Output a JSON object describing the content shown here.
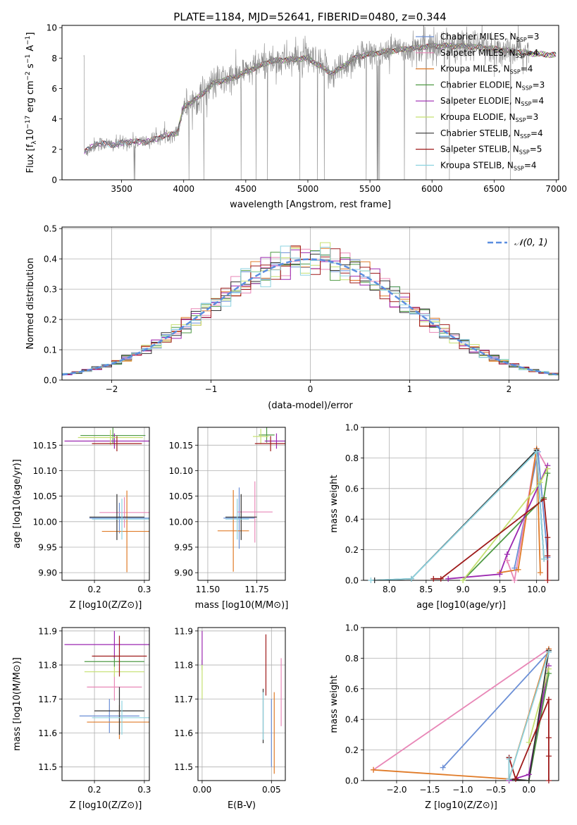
{
  "figure": {
    "title": "PLATE=1184, MJD=52641, FIBERID=0480, z=0.344"
  },
  "colors": {
    "Chabrier MILES": "#6b8fd6",
    "Salpeter MILES": "#e887b7",
    "Kroupa MILES": "#e07b28",
    "Chabrier ELODIE": "#4f9a44",
    "Salpeter ELODIE": "#9b27b0",
    "Kroupa ELODIE": "#c5e070",
    "Chabrier STELIB": "#333333",
    "Salpeter STELIB": "#9e1a1a",
    "Kroupa STELIB": "#8dd3e0",
    "data": "#888888",
    "gaussian": "#5b8ee0"
  },
  "chart_data": [
    {
      "type": "line",
      "id": "spectrum",
      "xlabel": "wavelength [Angstrom, rest frame]",
      "ylabel": "Flux [f_λ 10^-17 erg cm^-2 s^-1 A^-1]",
      "ylabel_parts": {
        "main": "Flux [f",
        "sub1": "λ",
        "mid": "10",
        "sup1": "−17",
        "mid2": " erg cm",
        "sup2": "−2",
        "mid3": " s",
        "sup3": "−1",
        "mid4": " A",
        "sup4": "−1",
        "end": "]"
      },
      "xlim": [
        3020,
        7020
      ],
      "ylim": [
        0,
        10.15
      ],
      "xticks": [
        3500,
        4000,
        4500,
        5000,
        5500,
        6000,
        6500,
        7000
      ],
      "yticks": [
        0,
        2,
        4,
        6,
        8,
        10
      ],
      "legend": [
        {
          "name": "Chabrier MILES",
          "n": "3"
        },
        {
          "name": "Salpeter MILES",
          "n": "4"
        },
        {
          "name": "Kroupa MILES",
          "n": "4"
        },
        {
          "name": "Chabrier ELODIE",
          "n": "3"
        },
        {
          "name": "Salpeter ELODIE",
          "n": "4"
        },
        {
          "name": "Kroupa ELODIE",
          "n": "3"
        },
        {
          "name": "Chabrier STELIB",
          "n": "4"
        },
        {
          "name": "Salpeter STELIB",
          "n": "5"
        },
        {
          "name": "Kroupa STELIB",
          "n": "4"
        }
      ],
      "legend_sub": "SSP",
      "legend_position": "upper right",
      "continuum_x": [
        3200,
        3300,
        3450,
        3550,
        3700,
        3850,
        3950,
        4000,
        4100,
        4250,
        4400,
        4500,
        4700,
        4860,
        5000,
        5150,
        5200,
        5400,
        5600,
        5800,
        6000,
        6200,
        6400,
        6600,
        6800,
        7000
      ],
      "continuum_y": [
        1.8,
        2.4,
        2.3,
        2.5,
        2.5,
        2.9,
        3.1,
        4.8,
        5.3,
        6.4,
        6.7,
        7.1,
        7.8,
        7.9,
        8.0,
        7.2,
        7.0,
        8.1,
        8.4,
        8.6,
        8.8,
        8.8,
        8.7,
        8.5,
        8.3,
        8.2
      ],
      "data_range": [
        3195,
        6780
      ]
    },
    {
      "type": "histogram",
      "id": "residuals",
      "xlabel": "(data-model)/error",
      "ylabel": "Normed distribution",
      "xlim": [
        -2.5,
        2.5
      ],
      "ylim": [
        0,
        0.505
      ],
      "xticks": [
        -2,
        -1,
        0,
        1,
        2
      ],
      "yticks": [
        0.0,
        0.1,
        0.2,
        0.3,
        0.4,
        0.5
      ],
      "grid": true,
      "bin_width": 0.1,
      "legend_label": "N(0,1)",
      "legend_position": "upper right",
      "series": [
        "Chabrier MILES",
        "Salpeter MILES",
        "Kroupa MILES",
        "Chabrier ELODIE",
        "Salpeter ELODIE",
        "Kroupa ELODIE",
        "Chabrier STELIB",
        "Salpeter STELIB",
        "Kroupa STELIB"
      ]
    },
    {
      "type": "errorbar",
      "id": "age-vs-Z",
      "xlabel": "Z [log10(Z/Z⊙)]",
      "ylabel": "age [log10(age/yr)]",
      "xlim": [
        0.135,
        0.31
      ],
      "ylim": [
        9.885,
        10.185
      ],
      "xticks": [
        0.2,
        0.3
      ],
      "yticks": [
        9.9,
        9.95,
        10.0,
        10.05,
        10.1,
        10.15
      ],
      "points": [
        {
          "series": "Chabrier MILES",
          "x": 0.25,
          "xerr": 0.06,
          "y": 10.007,
          "yerr": 0.03
        },
        {
          "series": "Salpeter MILES",
          "x": 0.26,
          "xerr": 0.05,
          "y": 10.018,
          "yerr": 0.03
        },
        {
          "series": "Kroupa MILES",
          "x": 0.265,
          "xerr": 0.05,
          "y": 9.981,
          "yerr": 0.08
        },
        {
          "series": "Chabrier ELODIE",
          "x": 0.237,
          "xerr": 0.065,
          "y": 10.169,
          "yerr": 0.015
        },
        {
          "series": "Salpeter ELODIE",
          "x": 0.24,
          "xerr": 0.1,
          "y": 10.158,
          "yerr": 0.015
        },
        {
          "series": "Kroupa ELODIE",
          "x": 0.232,
          "xerr": 0.065,
          "y": 10.165,
          "yerr": 0.015
        },
        {
          "series": "Chabrier STELIB",
          "x": 0.245,
          "xerr": 0.055,
          "y": 10.009,
          "yerr": 0.045
        },
        {
          "series": "Salpeter STELIB",
          "x": 0.245,
          "xerr": 0.05,
          "y": 10.153,
          "yerr": 0.015
        },
        {
          "series": "Kroupa STELIB",
          "x": 0.255,
          "xerr": 0.06,
          "y": 10.005,
          "yerr": 0.04
        }
      ]
    },
    {
      "type": "errorbar",
      "id": "age-vs-mass",
      "xlabel": "mass [log10(M/M⊙)]",
      "xlim": [
        11.45,
        11.895
      ],
      "ylim": [
        9.885,
        10.185
      ],
      "xticks": [
        11.5,
        11.75
      ],
      "yticks": [
        9.9,
        9.95,
        10.0,
        10.05,
        10.1,
        10.15
      ],
      "points": [
        {
          "series": "Chabrier MILES",
          "x": 11.66,
          "xerr": 0.08,
          "y": 10.007,
          "yerr": 0.06
        },
        {
          "series": "Salpeter MILES",
          "x": 11.74,
          "xerr": 0.09,
          "y": 10.019,
          "yerr": 0.06
        },
        {
          "series": "Kroupa MILES",
          "x": 11.63,
          "xerr": 0.08,
          "y": 9.982,
          "yerr": 0.08
        },
        {
          "series": "Chabrier ELODIE",
          "x": 11.8,
          "xerr": 0.04,
          "y": 10.17,
          "yerr": 0.015
        },
        {
          "series": "Salpeter ELODIE",
          "x": 11.85,
          "xerr": 0.06,
          "y": 10.158,
          "yerr": 0.015
        },
        {
          "series": "Kroupa ELODIE",
          "x": 11.77,
          "xerr": 0.04,
          "y": 10.167,
          "yerr": 0.015
        },
        {
          "series": "Chabrier STELIB",
          "x": 11.67,
          "xerr": 0.08,
          "y": 10.009,
          "yerr": 0.045
        },
        {
          "series": "Salpeter STELIB",
          "x": 11.82,
          "xerr": 0.08,
          "y": 10.153,
          "yerr": 0.015
        },
        {
          "series": "Kroupa STELIB",
          "x": 11.65,
          "xerr": 0.06,
          "y": 10.005,
          "yerr": 0.04
        }
      ]
    },
    {
      "type": "line",
      "id": "mass-weight-vs-age",
      "xlabel": "age [log10(age/yr)]",
      "ylabel": "mass weight",
      "xlim": [
        7.65,
        10.3
      ],
      "ylim": [
        0,
        1.0
      ],
      "xticks": [
        8.0,
        8.5,
        9.0,
        9.5,
        10.0
      ],
      "yticks": [
        0.0,
        0.2,
        0.4,
        0.6,
        0.8,
        1.0
      ],
      "grid": true,
      "series": [
        {
          "name": "Chabrier MILES",
          "x": [
            9.7,
            10.02,
            10.15
          ],
          "y": [
            0.08,
            0.84,
            0.15
          ]
        },
        {
          "name": "Salpeter MILES",
          "x": [
            9.6,
            9.7,
            10.0,
            10.15
          ],
          "y": [
            0.13,
            0.0,
            0.86,
            0.73
          ]
        },
        {
          "name": "Kroupa MILES",
          "x": [
            9.5,
            9.75,
            10.0,
            10.05
          ],
          "y": [
            0.05,
            0.07,
            0.86,
            0.05
          ]
        },
        {
          "name": "Chabrier ELODIE",
          "x": [
            9.0,
            10.1,
            10.15
          ],
          "y": [
            0.0,
            0.54,
            0.7
          ]
        },
        {
          "name": "Salpeter ELODIE",
          "x": [
            8.8,
            9.5,
            9.6,
            10.15
          ],
          "y": [
            0.01,
            0.04,
            0.17,
            0.75
          ]
        },
        {
          "name": "Kroupa ELODIE",
          "x": [
            9.0,
            10.05,
            10.15
          ],
          "y": [
            0.0,
            0.64,
            0.73
          ]
        },
        {
          "name": "Chabrier STELIB",
          "x": [
            7.8,
            8.3,
            10.0,
            10.1
          ],
          "y": [
            0.0,
            0.01,
            0.85,
            0.14
          ]
        },
        {
          "name": "Salpeter STELIB",
          "x": [
            8.6,
            8.7,
            10.1,
            10.15,
            10.15,
            10.15
          ],
          "y": [
            0.01,
            0.01,
            0.53,
            0.28,
            0.16,
            0.0
          ]
        },
        {
          "name": "Kroupa STELIB",
          "x": [
            7.75,
            8.3,
            10.0,
            10.1
          ],
          "y": [
            0.0,
            0.01,
            0.84,
            0.14
          ]
        }
      ]
    },
    {
      "type": "errorbar",
      "id": "mass-vs-Z",
      "xlabel": "Z [log10(Z/Z⊙)]",
      "ylabel": "mass [log10(M/M⊙)]",
      "xlim": [
        0.135,
        0.31
      ],
      "ylim": [
        11.46,
        11.91
      ],
      "xticks": [
        0.2,
        0.3
      ],
      "yticks": [
        11.5,
        11.6,
        11.7,
        11.8,
        11.9
      ],
      "points": [
        {
          "series": "Chabrier MILES",
          "x": 0.23,
          "xerr": 0.06,
          "y": 11.65,
          "yerr": 0.05
        },
        {
          "series": "Salpeter MILES",
          "x": 0.24,
          "xerr": 0.055,
          "y": 11.735,
          "yerr": 0.04
        },
        {
          "series": "Kroupa MILES",
          "x": 0.25,
          "xerr": 0.065,
          "y": 11.632,
          "yerr": 0.05
        },
        {
          "series": "Chabrier ELODIE",
          "x": 0.24,
          "xerr": 0.06,
          "y": 11.81,
          "yerr": 0.015
        },
        {
          "series": "Salpeter ELODIE",
          "x": 0.24,
          "xerr": 0.1,
          "y": 11.86,
          "yerr": 0.04
        },
        {
          "series": "Kroupa ELODIE",
          "x": 0.24,
          "xerr": 0.06,
          "y": 11.78,
          "yerr": 0.015
        },
        {
          "series": "Chabrier STELIB",
          "x": 0.25,
          "xerr": 0.05,
          "y": 11.665,
          "yerr": 0.07
        },
        {
          "series": "Salpeter STELIB",
          "x": 0.25,
          "xerr": 0.055,
          "y": 11.826,
          "yerr": 0.06
        },
        {
          "series": "Kroupa STELIB",
          "x": 0.255,
          "xerr": 0.06,
          "y": 11.645,
          "yerr": 0.05
        }
      ]
    },
    {
      "type": "errorbar",
      "id": "mass-vs-ebv",
      "xlabel": "E(B-V)",
      "xlim": [
        -0.003,
        0.06
      ],
      "ylim": [
        11.46,
        11.91
      ],
      "xticks": [
        0.0,
        0.05
      ],
      "yticks": [
        11.5,
        11.6,
        11.7,
        11.8,
        11.9
      ],
      "points": [
        {
          "series": "Chabrier MILES",
          "x": 0.05,
          "y": 11.6,
          "yerr": 0.1
        },
        {
          "series": "Salpeter MILES",
          "x": 0.057,
          "y": 11.72,
          "yerr": 0.1
        },
        {
          "series": "Kroupa MILES",
          "x": 0.052,
          "y": 11.6,
          "yerr": 0.12
        },
        {
          "series": "Chabrier ELODIE",
          "x": 0.0,
          "y": 11.8,
          "yerr": 0.015
        },
        {
          "series": "Salpeter ELODIE",
          "x": 0.0,
          "y": 11.85,
          "yerr": 0.05
        },
        {
          "series": "Kroupa ELODIE",
          "x": 0.0,
          "y": 11.75,
          "yerr": 0.05
        },
        {
          "series": "Chabrier STELIB",
          "x": 0.044,
          "y": 11.65,
          "yerr": 0.08
        },
        {
          "series": "Salpeter STELIB",
          "x": 0.046,
          "y": 11.8,
          "yerr": 0.09
        },
        {
          "series": "Kroupa STELIB",
          "x": 0.044,
          "y": 11.65,
          "yerr": 0.07
        }
      ]
    },
    {
      "type": "line",
      "id": "mass-weight-vs-Z",
      "xlabel": "Z [log10(Z/Z⊙)]",
      "ylabel": "mass weight",
      "xlim": [
        -2.5,
        0.45
      ],
      "ylim": [
        0,
        1.0
      ],
      "xticks": [
        -2.0,
        -1.5,
        -1.0,
        -0.5,
        0.0
      ],
      "yticks": [
        0.0,
        0.2,
        0.4,
        0.6,
        0.8,
        1.0
      ],
      "grid": true,
      "series": [
        {
          "name": "Chabrier MILES",
          "x": [
            -1.3,
            0.3
          ],
          "y": [
            0.085,
            0.84
          ]
        },
        {
          "name": "Salpeter MILES",
          "x": [
            -2.35,
            0.3
          ],
          "y": [
            0.07,
            0.86
          ]
        },
        {
          "name": "Kroupa MILES",
          "x": [
            -2.35,
            -0.3,
            0.3
          ],
          "y": [
            0.07,
            0.01,
            0.86
          ]
        },
        {
          "name": "Chabrier ELODIE",
          "x": [
            0.0,
            0.3
          ],
          "y": [
            0.0,
            0.7
          ]
        },
        {
          "name": "Salpeter ELODIE",
          "x": [
            -0.3,
            0.0,
            0.3
          ],
          "y": [
            0.0,
            0.04,
            0.75
          ]
        },
        {
          "name": "Kroupa ELODIE",
          "x": [
            0.0,
            0.3
          ],
          "y": [
            0.25,
            0.73
          ]
        },
        {
          "name": "Chabrier STELIB",
          "x": [
            -0.3,
            -0.3,
            0.0,
            0.3
          ],
          "y": [
            0.15,
            0.01,
            0.0,
            0.85
          ]
        },
        {
          "name": "Salpeter STELIB",
          "x": [
            -0.3,
            -0.2,
            0.3,
            0.3,
            0.3,
            0.3
          ],
          "y": [
            0.15,
            0.01,
            0.53,
            0.28,
            0.16,
            0.0
          ]
        },
        {
          "name": "Kroupa STELIB",
          "x": [
            -0.3,
            -0.3,
            0.3
          ],
          "y": [
            0.14,
            0.01,
            0.84
          ]
        }
      ]
    }
  ]
}
